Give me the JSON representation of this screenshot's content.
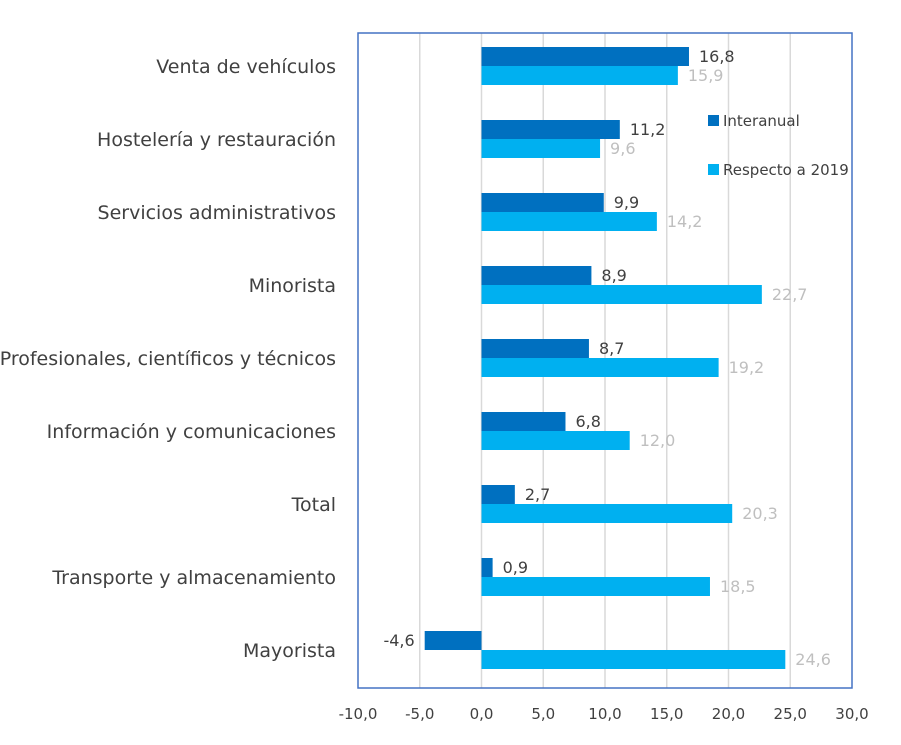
{
  "chart_data": {
    "type": "bar",
    "orientation": "horizontal",
    "categories": [
      "Venta de vehículos",
      "Hostelería y restauración",
      "Servicios administrativos",
      "Minorista",
      "Profesionales, científicos y técnicos",
      "Información y comunicaciones",
      "Total",
      "Transporte y almacenamiento",
      "Mayorista"
    ],
    "series": [
      {
        "name": "Interanual",
        "color": "#0070C0",
        "label_color": "#404040",
        "values": [
          16.8,
          11.2,
          9.9,
          8.9,
          8.7,
          6.8,
          2.7,
          0.9,
          -4.6
        ],
        "labels": [
          "16,8",
          "11,2",
          "9,9",
          "8,9",
          "8,7",
          "6,8",
          "2,7",
          "0,9",
          "-4,6"
        ]
      },
      {
        "name": "Respecto a 2019",
        "color": "#00B0F0",
        "label_color": "#BFBFBF",
        "values": [
          15.9,
          9.6,
          14.2,
          22.7,
          19.2,
          12.0,
          20.3,
          18.5,
          24.6
        ],
        "labels": [
          "15,9",
          "9,6",
          "14,2",
          "22,7",
          "19,2",
          "12,0",
          "20,3",
          "18,5",
          "24,6"
        ]
      }
    ],
    "xlim": [
      -10,
      30
    ],
    "xticks": [
      -10,
      -5,
      0,
      5,
      10,
      15,
      20,
      25,
      30
    ],
    "xtick_labels": [
      "-10,0",
      "-5,0",
      "0,0",
      "5,0",
      "10,0",
      "15,0",
      "20,0",
      "25,0",
      "30,0"
    ],
    "grid": "vertical",
    "legend": "right",
    "frame_color": "#4472C4"
  }
}
